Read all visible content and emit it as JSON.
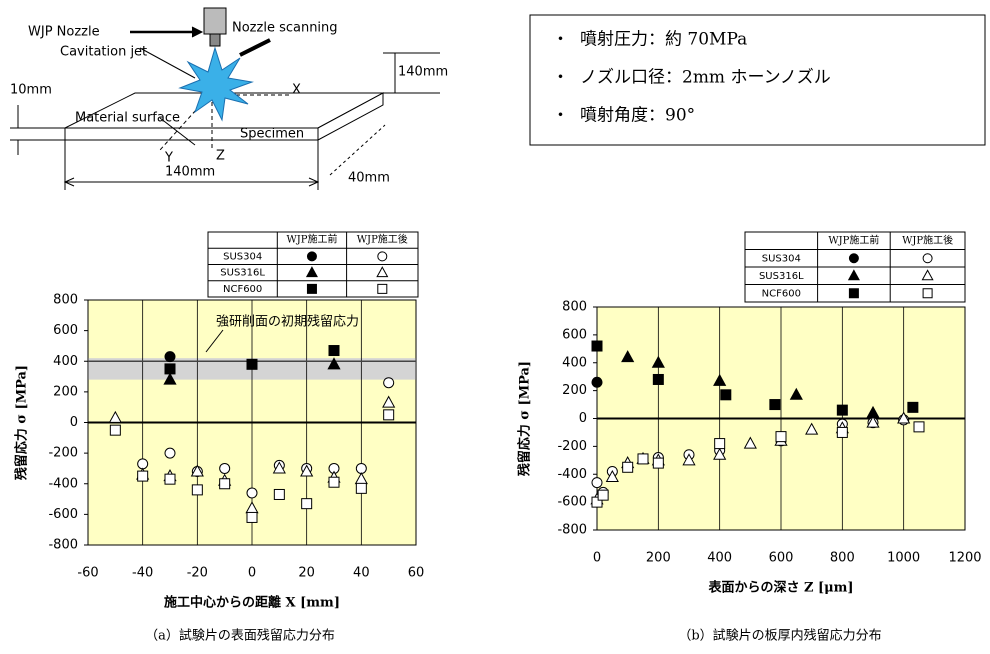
{
  "diagram": {
    "nozzle": "WJP Nozzle",
    "scanning": "Nozzle scanning",
    "jet": "Cavitation jet",
    "x_axis": "X",
    "y_axis": "Y",
    "z_axis": "Z",
    "thickness": "10mm",
    "height": "140mm",
    "surface": "Material  surface",
    "specimen": "Specimen",
    "length": "140mm",
    "depth": "40mm"
  },
  "conditions": [
    "噴射圧力：約 70MPa",
    "ノズル口径：2mm ホーンノズル",
    "噴射角度：90°"
  ],
  "chart_data": [
    {
      "type": "scatter",
      "caption": "（a）試験片の表面残留応力分布",
      "x_label": "施工中心からの距離 X [mm]",
      "y_label": "残留応力 σ [MPa]",
      "xlim": [
        -60,
        60
      ],
      "xticks": [
        -60,
        -40,
        -20,
        0,
        20,
        40,
        60
      ],
      "ylim": [
        -800,
        800
      ],
      "yticks": [
        -800,
        -600,
        -400,
        -200,
        0,
        200,
        400,
        600,
        800
      ],
      "grid": true,
      "band": [
        280,
        420
      ],
      "reference_line": 400,
      "annotation": "強研削面の初期残留応力",
      "legend_columns": [
        "WJP施工前",
        "WJP施工後"
      ],
      "series": [
        {
          "name": "SUS304",
          "marker": "circle",
          "color": "#000000",
          "before": {
            "x": [
              -30
            ],
            "values": [
              430
            ]
          },
          "after": {
            "x": [
              -40,
              -30,
              -20,
              -10,
              0,
              10,
              20,
              30,
              40,
              50
            ],
            "values": [
              -270,
              -200,
              -320,
              -300,
              -460,
              -280,
              -300,
              -300,
              -300,
              260
            ]
          }
        },
        {
          "name": "SUS316L",
          "marker": "triangle",
          "color": "#000000",
          "before": {
            "x": [
              -30,
              30
            ],
            "values": [
              280,
              380
            ]
          },
          "after": {
            "x": [
              -50,
              -40,
              -30,
              -20,
              -10,
              0,
              10,
              20,
              30,
              40,
              50
            ],
            "values": [
              30,
              -340,
              -350,
              -320,
              -380,
              -560,
              -300,
              -320,
              -360,
              -370,
              130
            ]
          }
        },
        {
          "name": "NCF600",
          "marker": "square",
          "color": "#000000",
          "before": {
            "x": [
              -30,
              0,
              30
            ],
            "values": [
              350,
              380,
              470
            ]
          },
          "after": {
            "x": [
              -50,
              -40,
              -30,
              -20,
              -10,
              0,
              10,
              20,
              30,
              40,
              50
            ],
            "values": [
              -50,
              -350,
              -370,
              -440,
              -400,
              -620,
              -470,
              -530,
              -390,
              -430,
              50
            ]
          }
        }
      ]
    },
    {
      "type": "scatter",
      "caption": "（b）試験片の板厚内残留応力分布",
      "x_label": "表面からの深さ Z [μm]",
      "y_label": "残留応力 σ [MPa]",
      "xlim": [
        0,
        1200
      ],
      "xticks": [
        0,
        200,
        400,
        600,
        800,
        1000,
        1200
      ],
      "ylim": [
        -800,
        800
      ],
      "yticks": [
        -800,
        -600,
        -400,
        -200,
        0,
        200,
        400,
        600,
        800
      ],
      "grid": true,
      "legend_columns": [
        "WJP施工前",
        "WJP施工後"
      ],
      "series": [
        {
          "name": "SUS304",
          "marker": "circle",
          "color": "#000000",
          "before": {
            "x": [
              0
            ],
            "values": [
              260
            ]
          },
          "after": {
            "x": [
              0,
              20,
              50,
              200,
              300,
              400,
              600,
              800,
              900,
              1000
            ],
            "values": [
              -460,
              -530,
              -380,
              -280,
              -260,
              -230,
              -160,
              -40,
              -30,
              -10
            ]
          }
        },
        {
          "name": "SUS316L",
          "marker": "triangle",
          "color": "#000000",
          "before": {
            "x": [
              100,
              200,
              400,
              650,
              900
            ],
            "values": [
              440,
              400,
              270,
              170,
              40
            ]
          },
          "after": {
            "x": [
              0,
              50,
              100,
              150,
              200,
              300,
              400,
              500,
              600,
              700,
              800,
              900,
              1000
            ],
            "values": [
              -580,
              -420,
              -320,
              -290,
              -300,
              -300,
              -260,
              -180,
              -160,
              -80,
              -70,
              -30,
              0
            ]
          }
        },
        {
          "name": "NCF600",
          "marker": "square",
          "color": "#000000",
          "before": {
            "x": [
              0,
              200,
              420,
              580,
              800,
              1030
            ],
            "values": [
              520,
              280,
              170,
              100,
              60,
              80
            ]
          },
          "after": {
            "x": [
              0,
              20,
              100,
              150,
              200,
              400,
              600,
              800,
              1050
            ],
            "values": [
              -600,
              -550,
              -350,
              -290,
              -320,
              -180,
              -130,
              -100,
              -60
            ]
          }
        }
      ]
    }
  ]
}
